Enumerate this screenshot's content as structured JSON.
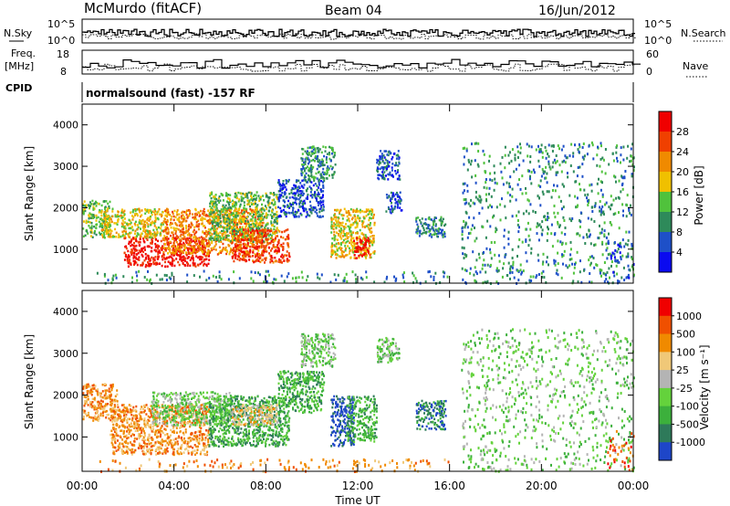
{
  "header": {
    "site": "McMurdo (fitACF)",
    "beam": "Beam 04",
    "date": "16/Jun/2012"
  },
  "noise_panel": {
    "left_label": "N.Sky",
    "right_label": "N.Search",
    "left_ticks": [
      "10^5",
      "10^0"
    ],
    "right_ticks": [
      "10^5",
      "10^0"
    ]
  },
  "freq_panel": {
    "left_label_1": "Freq.",
    "left_label_2": "[MHz]",
    "right_label": "Nave",
    "left_ticks": [
      "18",
      "8"
    ],
    "right_ticks": [
      "60",
      "0"
    ]
  },
  "cpid": {
    "label": "CPID",
    "text": "normalsound (fast) -157 RF"
  },
  "chart_data": [
    {
      "type": "heatmap",
      "name": "Power",
      "ylabel": "Slant Range [km]",
      "xlabel": "Time UT",
      "x_ticks": [
        "00:00",
        "04:00",
        "08:00",
        "12:00",
        "16:00",
        "20:00",
        "00:00"
      ],
      "xlim_hours": [
        0,
        24
      ],
      "ylim_km": [
        180,
        4500
      ],
      "y_ticks": [
        1000,
        2000,
        3000,
        4000
      ],
      "colorbar": {
        "label": "Power [dB]",
        "ticks": [
          "4",
          "8",
          "12",
          "16",
          "20",
          "24",
          "28"
        ],
        "colors": [
          "#0a0af0",
          "#1e50c8",
          "#2e8a5a",
          "#50c23c",
          "#f0c000",
          "#f08a00",
          "#f04000",
          "#f00000"
        ]
      },
      "regions": [
        {
          "t": [
            0.0,
            1.2
          ],
          "r": [
            1300,
            2200
          ],
          "level": 3
        },
        {
          "t": [
            1.8,
            5.5
          ],
          "r": [
            600,
            1300
          ],
          "level": 7
        },
        {
          "t": [
            0.8,
            3.5
          ],
          "r": [
            1300,
            2000
          ],
          "level": 4
        },
        {
          "t": [
            3.5,
            8.0
          ],
          "r": [
            900,
            2000
          ],
          "level": 5
        },
        {
          "t": [
            5.5,
            8.5
          ],
          "r": [
            1200,
            2400
          ],
          "level": 3
        },
        {
          "t": [
            6.5,
            9.0
          ],
          "r": [
            700,
            1500
          ],
          "level": 6
        },
        {
          "t": [
            8.5,
            10.5
          ],
          "r": [
            1800,
            2700
          ],
          "level": 1
        },
        {
          "t": [
            10.8,
            12.7
          ],
          "r": [
            800,
            2000
          ],
          "level": 4
        },
        {
          "t": [
            11.8,
            12.5
          ],
          "r": [
            800,
            1300
          ],
          "level": 7
        },
        {
          "t": [
            9.5,
            11.0
          ],
          "r": [
            2700,
            3500
          ],
          "level": 2
        },
        {
          "t": [
            12.8,
            13.8
          ],
          "r": [
            2700,
            3400
          ],
          "level": 1
        },
        {
          "t": [
            14.5,
            15.8
          ],
          "r": [
            1300,
            1800
          ],
          "level": 2
        },
        {
          "t": [
            13.2,
            13.9
          ],
          "r": [
            1900,
            2400
          ],
          "level": 1
        },
        {
          "t": [
            0.5,
            16.0
          ],
          "r": [
            200,
            500
          ],
          "level": 2
        },
        {
          "t": [
            16.5,
            24.0
          ],
          "r": [
            200,
            3600
          ],
          "level": 2
        },
        {
          "t": [
            22.8,
            24.0
          ],
          "r": [
            200,
            1200
          ],
          "level": 1
        }
      ]
    },
    {
      "type": "heatmap",
      "name": "Velocity",
      "ylabel": "Slant Range [km]",
      "xlabel": "Time UT",
      "x_ticks": [
        "00:00",
        "04:00",
        "08:00",
        "12:00",
        "16:00",
        "20:00",
        "00:00"
      ],
      "xlim_hours": [
        0,
        24
      ],
      "ylim_km": [
        180,
        4500
      ],
      "y_ticks": [
        1000,
        2000,
        3000,
        4000
      ],
      "colorbar": {
        "label": "Velocity [m s⁻¹]",
        "ticks": [
          "1000",
          "500",
          "100",
          "25",
          "-25",
          "-100",
          "-500",
          "-1000"
        ],
        "colors": [
          "#1e46c8",
          "#2e7a5a",
          "#3cb03c",
          "#64d23c",
          "#b4b4b4",
          "#f0c878",
          "#f08a00",
          "#f05000",
          "#f00000"
        ]
      },
      "regions": [
        {
          "t": [
            0.0,
            1.5
          ],
          "r": [
            1400,
            2300
          ],
          "level": 6
        },
        {
          "t": [
            1.2,
            5.5
          ],
          "r": [
            600,
            1800
          ],
          "level": 6
        },
        {
          "t": [
            3.0,
            6.5
          ],
          "r": [
            1300,
            2100
          ],
          "level": 3
        },
        {
          "t": [
            5.5,
            9.0
          ],
          "r": [
            800,
            2000
          ],
          "level": 2
        },
        {
          "t": [
            6.5,
            8.5
          ],
          "r": [
            1300,
            1800
          ],
          "level": 5
        },
        {
          "t": [
            8.5,
            10.5
          ],
          "r": [
            1600,
            2600
          ],
          "level": 2
        },
        {
          "t": [
            10.8,
            11.8
          ],
          "r": [
            800,
            2000
          ],
          "level": 0
        },
        {
          "t": [
            11.5,
            12.8
          ],
          "r": [
            900,
            2000
          ],
          "level": 2
        },
        {
          "t": [
            9.5,
            11.0
          ],
          "r": [
            2700,
            3500
          ],
          "level": 3
        },
        {
          "t": [
            14.5,
            15.8
          ],
          "r": [
            1200,
            1900
          ],
          "level": 1
        },
        {
          "t": [
            12.8,
            13.8
          ],
          "r": [
            2800,
            3400
          ],
          "level": 3
        },
        {
          "t": [
            0.5,
            16.0
          ],
          "r": [
            200,
            500
          ],
          "level": 6
        },
        {
          "t": [
            16.5,
            24.0
          ],
          "r": [
            200,
            3600
          ],
          "level": 3
        },
        {
          "t": [
            22.8,
            24.0
          ],
          "r": [
            200,
            1200
          ],
          "level": 7
        }
      ]
    }
  ]
}
